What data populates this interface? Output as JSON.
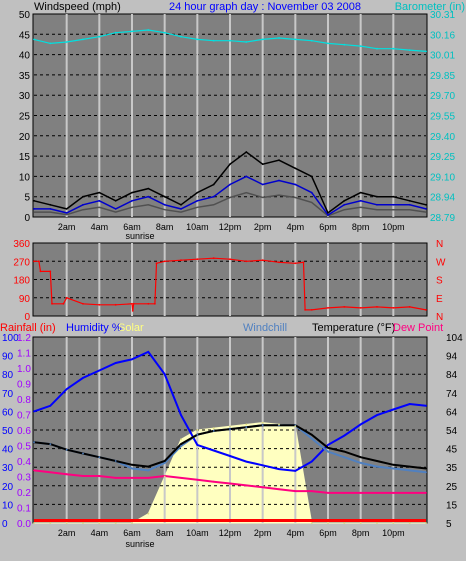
{
  "colors": {
    "background": "#c0c0c0",
    "plot": "#808080",
    "grid": "#000000",
    "wind_gust": "#000000",
    "wind_avg": "#0000cc",
    "wind_alt": "#505050",
    "barometer": "#00e0e0",
    "direction": "#ff0000",
    "humidity": "#0000ff",
    "solar": "#ffffc0",
    "rainfall": "#ff0000",
    "windchill": "#5080c0",
    "temperature": "#000000",
    "dew_point": "#ff0080",
    "label_blue": "#0000ff",
    "label_cyan": "#00c0c0",
    "label_red": "#ff0000",
    "label_purple": "#a000ff"
  },
  "chart_data": [
    {
      "type": "line",
      "title": "24 hour graph day : November 03 2008",
      "ylabel": "Windspeed (mph)",
      "y2label": "Barometer (in)",
      "x_ticks": [
        "2am",
        "4am",
        "6am",
        "8am",
        "10am",
        "12pm",
        "2pm",
        "4pm",
        "6pm",
        "8pm",
        "10pm"
      ],
      "x_marker": "sunrise",
      "y_ticks": [
        "0",
        "5",
        "10",
        "15",
        "20",
        "25",
        "30",
        "35",
        "40",
        "45",
        "50"
      ],
      "y2_ticks": [
        "28.79",
        "28.94",
        "29.10",
        "29.25",
        "29.40",
        "29.55",
        "29.70",
        "29.85",
        "30.01",
        "30.16",
        "30.31"
      ],
      "ylim": [
        0,
        50
      ],
      "y2lim": [
        28.79,
        30.31
      ],
      "grid": true,
      "x": [
        0,
        1,
        2,
        3,
        4,
        5,
        6,
        7,
        8,
        9,
        10,
        11,
        12,
        13,
        14,
        15,
        16,
        17,
        18,
        19,
        20,
        21,
        22,
        23,
        24
      ],
      "series": [
        {
          "name": "gust",
          "values": [
            4,
            3,
            2,
            5,
            6,
            4,
            6,
            7,
            5,
            3,
            6,
            8,
            13,
            16,
            13,
            14,
            12,
            10,
            1,
            4,
            6,
            5,
            5,
            4,
            3
          ]
        },
        {
          "name": "average",
          "values": [
            2,
            2,
            1,
            3,
            4,
            2,
            4,
            5,
            3,
            2,
            4,
            5,
            8,
            10,
            8,
            9,
            8,
            6,
            0.5,
            3,
            4,
            3,
            3,
            3,
            2
          ]
        },
        {
          "name": "barometer",
          "values": [
            30.12,
            30.09,
            30.1,
            30.12,
            30.14,
            30.17,
            30.18,
            30.19,
            30.17,
            30.14,
            30.12,
            30.11,
            30.11,
            30.1,
            30.12,
            30.13,
            30.12,
            30.11,
            30.09,
            30.08,
            30.07,
            30.05,
            30.05,
            30.04,
            30.03
          ]
        }
      ]
    },
    {
      "type": "line",
      "title": "",
      "y_ticks": [
        "0",
        "90",
        "180",
        "270",
        "360"
      ],
      "y2_ticks": [
        "N",
        "E",
        "S",
        "W",
        "N"
      ],
      "ylim": [
        0,
        360
      ],
      "grid": true,
      "x": [
        0,
        0.3,
        0.4,
        1.0,
        1.1,
        1.8,
        2.0,
        3.0,
        4.0,
        5.0,
        6.0,
        6.05,
        6.1,
        7.0,
        7.4,
        7.5,
        8,
        9,
        10,
        11,
        12,
        13,
        14,
        15,
        16,
        16.5,
        16.6,
        17,
        18,
        19,
        20,
        21,
        22,
        23,
        24
      ],
      "series": [
        {
          "name": "direction",
          "values": [
            270,
            270,
            220,
            220,
            60,
            60,
            90,
            60,
            55,
            55,
            60,
            25,
            60,
            60,
            60,
            260,
            270,
            275,
            280,
            285,
            280,
            270,
            275,
            265,
            260,
            265,
            30,
            30,
            40,
            45,
            40,
            45,
            40,
            45,
            30
          ]
        }
      ]
    },
    {
      "type": "line",
      "title": "",
      "ylabel": "Rainfall (in)",
      "legend": [
        "Humidity %",
        "Solar",
        "Windchill",
        "Temperature (°F)",
        "Dew Point"
      ],
      "x_ticks": [
        "2am",
        "4am",
        "6am",
        "8am",
        "10am",
        "12pm",
        "2pm",
        "4pm",
        "6pm",
        "8pm",
        "10pm"
      ],
      "x_marker": "sunrise",
      "humidity_ticks": [
        "0",
        "10",
        "20",
        "30",
        "40",
        "50",
        "60",
        "70",
        "80",
        "90",
        "100"
      ],
      "rain_ticks": [
        "0.0",
        "0.1",
        "0.2",
        "0.3",
        "0.4",
        "0.5",
        "0.6",
        "0.7",
        "0.8",
        "0.9",
        "1.0",
        "1.1",
        "1.2"
      ],
      "temp_ticks": [
        "5",
        "15",
        "25",
        "35",
        "45",
        "54",
        "64",
        "74",
        "84",
        "94",
        "104"
      ],
      "grid": true,
      "x": [
        0,
        1,
        2,
        3,
        4,
        5,
        6,
        7,
        8,
        9,
        10,
        11,
        12,
        13,
        14,
        15,
        16,
        17,
        18,
        19,
        20,
        21,
        22,
        23,
        24
      ],
      "series": [
        {
          "name": "Humidity %",
          "values": [
            60,
            63,
            72,
            78,
            82,
            86,
            88,
            92,
            80,
            58,
            42,
            39,
            36,
            33,
            31,
            29,
            28,
            33,
            42,
            47,
            53,
            58,
            61,
            64,
            63
          ]
        },
        {
          "name": "Solar",
          "values": [
            0,
            0,
            0,
            0,
            0,
            0,
            0,
            5,
            25,
            45,
            50,
            51,
            52,
            53,
            54,
            53,
            52,
            0,
            0,
            0,
            0,
            0,
            0,
            0,
            0
          ]
        },
        {
          "name": "Temperature (°F)",
          "values": [
            48,
            47,
            44,
            42,
            40,
            38,
            36,
            35,
            38,
            47,
            52,
            54,
            55,
            56,
            57,
            57,
            57,
            52,
            45,
            43,
            40,
            38,
            36,
            35,
            34
          ]
        },
        {
          "name": "Windchill",
          "values": [
            48,
            47,
            44,
            42,
            40,
            38,
            34,
            33,
            37,
            46,
            52,
            54,
            55,
            56,
            57,
            57,
            57,
            50,
            43,
            40,
            37,
            35,
            34,
            33,
            32
          ]
        },
        {
          "name": "Dew Point",
          "values": [
            33,
            32,
            31,
            30,
            30,
            29,
            29,
            29,
            30,
            29,
            28,
            27,
            26,
            25,
            24,
            23,
            22,
            22,
            21,
            21,
            21,
            21,
            21,
            21,
            21
          ]
        },
        {
          "name": "Rainfall (in)",
          "values": [
            0,
            0,
            0,
            0,
            0,
            0,
            0,
            0,
            0,
            0,
            0,
            0,
            0,
            0,
            0,
            0,
            0,
            0,
            0,
            0,
            0,
            0,
            0,
            0,
            0
          ]
        }
      ]
    }
  ]
}
